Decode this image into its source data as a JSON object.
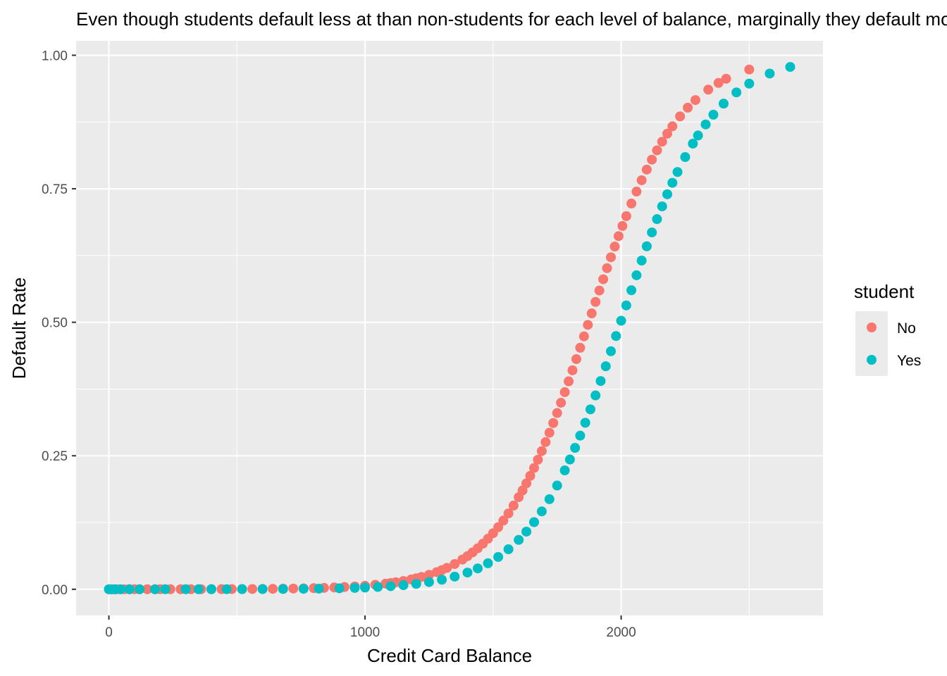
{
  "chart_data": {
    "type": "scatter",
    "title": "Even though students default less at than non-students for each level of balance, marginally they default more",
    "xlabel": "Credit Card Balance",
    "ylabel": "Default Rate",
    "xlim": [
      -128,
      2788
    ],
    "ylim": [
      -0.049,
      1.027
    ],
    "x_ticks": [
      0,
      1000,
      2000
    ],
    "x_tick_labels": [
      "0",
      "1000",
      "2000"
    ],
    "y_ticks": [
      0,
      0.25,
      0.5,
      0.75,
      1.0
    ],
    "y_tick_labels": [
      "0.00",
      "0.25",
      "0.50",
      "0.75",
      "1.00"
    ],
    "grid": true,
    "legend": {
      "title": "student",
      "position": "right",
      "entries": [
        "No",
        "Yes"
      ]
    },
    "colors": {
      "No": "#F8766D",
      "Yes": "#00BFC4",
      "panel": "#EBEBEB",
      "grid": "#FFFFFF"
    },
    "model": {
      "form": "logistic",
      "intercept": -10.7495,
      "slope_balance": 0.005738,
      "student_yes_offset": -0.7149
    },
    "series": [
      {
        "name": "No",
        "x": [
          0,
          5,
          12,
          20,
          30,
          45,
          60,
          80,
          100,
          120,
          150,
          180,
          200,
          240,
          280,
          320,
          360,
          400,
          440,
          480,
          520,
          560,
          600,
          640,
          680,
          720,
          760,
          800,
          840,
          880,
          920,
          960,
          1000,
          1040,
          1080,
          1100,
          1120,
          1150,
          1180,
          1200,
          1220,
          1250,
          1280,
          1300,
          1320,
          1350,
          1380,
          1400,
          1420,
          1440,
          1460,
          1480,
          1500,
          1520,
          1540,
          1560,
          1580,
          1600,
          1615,
          1630,
          1645,
          1660,
          1675,
          1690,
          1705,
          1720,
          1735,
          1750,
          1765,
          1780,
          1795,
          1810,
          1825,
          1840,
          1855,
          1870,
          1885,
          1900,
          1915,
          1930,
          1945,
          1960,
          1975,
          1990,
          2005,
          2020,
          2040,
          2060,
          2080,
          2100,
          2120,
          2140,
          2160,
          2180,
          2200,
          2230,
          2260,
          2290,
          2340,
          2380,
          2410,
          2500
        ]
      },
      {
        "name": "Yes",
        "x": [
          0,
          10,
          25,
          45,
          80,
          120,
          180,
          220,
          300,
          350,
          400,
          460,
          520,
          600,
          680,
          760,
          820,
          900,
          960,
          1000,
          1050,
          1100,
          1150,
          1200,
          1250,
          1300,
          1350,
          1400,
          1440,
          1480,
          1520,
          1560,
          1600,
          1630,
          1660,
          1690,
          1720,
          1750,
          1780,
          1800,
          1820,
          1840,
          1860,
          1880,
          1900,
          1920,
          1940,
          1960,
          1980,
          2000,
          2020,
          2040,
          2060,
          2080,
          2100,
          2120,
          2140,
          2160,
          2180,
          2200,
          2220,
          2250,
          2280,
          2300,
          2330,
          2360,
          2400,
          2450,
          2500,
          2580,
          2660
        ]
      }
    ]
  }
}
